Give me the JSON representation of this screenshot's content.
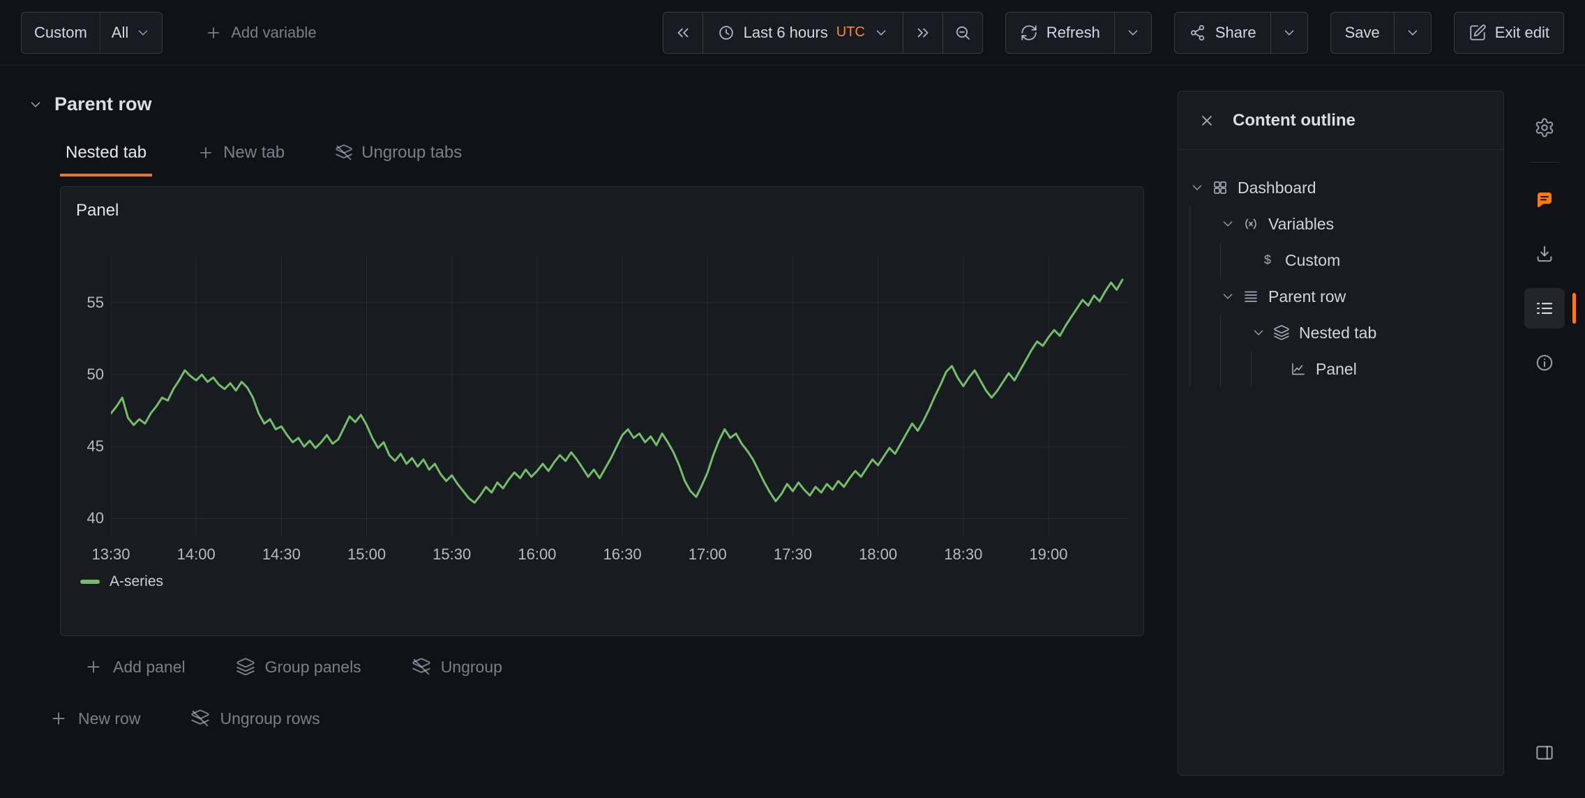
{
  "toolbar": {
    "variable": {
      "label": "Custom",
      "value": "All"
    },
    "add_variable_label": "Add variable",
    "time_picker": {
      "range_label": "Last 6 hours",
      "timezone": "UTC"
    },
    "refresh_label": "Refresh",
    "share_label": "Share",
    "save_label": "Save",
    "exit_edit_label": "Exit edit"
  },
  "row": {
    "title": "Parent row"
  },
  "tabs": {
    "active_label": "Nested tab",
    "new_tab_label": "New tab",
    "ungroup_tabs_label": "Ungroup tabs"
  },
  "panel": {
    "title": "Panel"
  },
  "panel_actions": {
    "add_panel_label": "Add panel",
    "group_panels_label": "Group panels",
    "ungroup_label": "Ungroup"
  },
  "row_actions": {
    "new_row_label": "New row",
    "ungroup_rows_label": "Ungroup rows"
  },
  "outline": {
    "title": "Content outline",
    "items": [
      {
        "label": "Dashboard",
        "icon": "apps",
        "chevron": true,
        "level": 0
      },
      {
        "label": "Variables",
        "icon": "brackets-x",
        "chevron": true,
        "level": 1
      },
      {
        "label": "Custom",
        "icon": "dollar",
        "chevron": false,
        "level": 2
      },
      {
        "label": "Parent row",
        "icon": "list",
        "chevron": true,
        "level": 1
      },
      {
        "label": "Nested tab",
        "icon": "layers",
        "chevron": true,
        "level": 2
      },
      {
        "label": "Panel",
        "icon": "chart-line",
        "chevron": false,
        "level": 3
      }
    ]
  },
  "side_strip": {
    "icons": [
      {
        "name": "gear",
        "accent": false,
        "active": false,
        "divider_after": true
      },
      {
        "name": "comment",
        "accent": true,
        "active": false,
        "divider_after": false
      },
      {
        "name": "download",
        "accent": false,
        "active": false,
        "divider_after": false
      },
      {
        "name": "outline-list",
        "accent": false,
        "active": true,
        "divider_after": false
      },
      {
        "name": "info-circle",
        "accent": false,
        "active": false,
        "divider_after": false
      }
    ],
    "bottom_icon": "panel-right"
  },
  "colors": {
    "accent_orange": "#ff780a",
    "series_green": "#73bf69",
    "panel_bg": "#181b20"
  },
  "chart_data": {
    "type": "line",
    "title": "Panel",
    "x_minutes_start": 0,
    "x_minutes_step": 2,
    "x_base_time": "13:30",
    "x_ticks": [
      {
        "t": 0,
        "label": "13:30"
      },
      {
        "t": 30,
        "label": "14:00"
      },
      {
        "t": 60,
        "label": "14:30"
      },
      {
        "t": 90,
        "label": "15:00"
      },
      {
        "t": 120,
        "label": "15:30"
      },
      {
        "t": 150,
        "label": "16:00"
      },
      {
        "t": 180,
        "label": "16:30"
      },
      {
        "t": 210,
        "label": "17:00"
      },
      {
        "t": 240,
        "label": "17:30"
      },
      {
        "t": 270,
        "label": "18:00"
      },
      {
        "t": 300,
        "label": "18:30"
      },
      {
        "t": 330,
        "label": "19:00"
      }
    ],
    "y_ticks": [
      40,
      45,
      50,
      55
    ],
    "xlim": [
      0,
      358
    ],
    "ylim": [
      38.8,
      58.2
    ],
    "grid": true,
    "legend_position": "bottom-left",
    "series": [
      {
        "name": "A-series",
        "color": "#73bf69",
        "values": [
          47.3,
          47.8,
          48.4,
          47.0,
          46.5,
          46.9,
          46.6,
          47.3,
          47.8,
          48.4,
          48.2,
          49.0,
          49.6,
          50.3,
          49.9,
          49.6,
          50.0,
          49.5,
          49.8,
          49.3,
          49.0,
          49.4,
          48.9,
          49.5,
          49.1,
          48.4,
          47.3,
          46.6,
          46.9,
          46.2,
          46.4,
          45.8,
          45.3,
          45.6,
          45.0,
          45.4,
          44.9,
          45.3,
          45.8,
          45.2,
          45.5,
          46.3,
          47.1,
          46.7,
          47.2,
          46.5,
          45.6,
          44.9,
          45.3,
          44.4,
          44.0,
          44.5,
          43.8,
          44.2,
          43.6,
          44.1,
          43.4,
          43.8,
          43.1,
          42.6,
          43.0,
          42.4,
          41.9,
          41.4,
          41.1,
          41.6,
          42.2,
          41.8,
          42.5,
          42.1,
          42.7,
          43.2,
          42.8,
          43.4,
          42.9,
          43.3,
          43.8,
          43.3,
          43.9,
          44.4,
          44.0,
          44.6,
          44.1,
          43.5,
          42.9,
          43.4,
          42.8,
          43.5,
          44.2,
          45.0,
          45.8,
          46.2,
          45.6,
          45.9,
          45.3,
          45.7,
          45.1,
          45.9,
          45.3,
          44.6,
          43.7,
          42.6,
          41.9,
          41.5,
          42.3,
          43.2,
          44.4,
          45.4,
          46.2,
          45.6,
          45.9,
          45.2,
          44.7,
          44.1,
          43.3,
          42.5,
          41.8,
          41.2,
          41.7,
          42.4,
          41.9,
          42.5,
          42.0,
          41.6,
          42.2,
          41.8,
          42.4,
          42.0,
          42.6,
          42.2,
          42.8,
          43.3,
          42.9,
          43.5,
          44.1,
          43.7,
          44.3,
          44.9,
          44.5,
          45.2,
          45.9,
          46.6,
          46.1,
          46.8,
          47.6,
          48.5,
          49.3,
          50.2,
          50.6,
          49.8,
          49.2,
          49.8,
          50.3,
          49.6,
          48.9,
          48.4,
          48.9,
          49.5,
          50.1,
          49.6,
          50.3,
          51.0,
          51.7,
          52.3,
          52.0,
          52.6,
          53.1,
          52.7,
          53.4,
          54.0,
          54.6,
          55.2,
          54.8,
          55.5,
          55.1,
          55.8,
          56.4,
          55.9,
          56.6
        ]
      }
    ]
  }
}
